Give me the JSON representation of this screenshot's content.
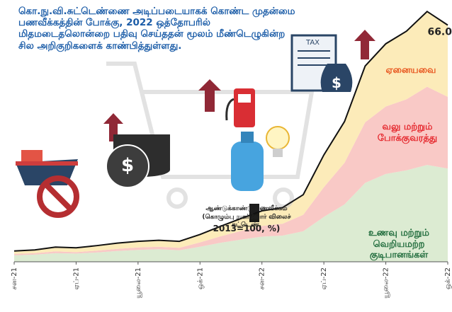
{
  "chart_data": {
    "type": "stacked_area",
    "summary": "கொ.நு.வி.சுட்டெண்ணை அடிப்படையாகக் கொண்ட முதன்மை பணவீக்கத்தின் போக்கு, 2022 ஒத்தோபரில் மிதமடைதலொன்றை பதிவு செய்ததன் மூலம் மீண்டெழுகின்ற சில அறிகுறிகளைக் காண்பித்துள்ளது.",
    "caption_title": "ஆண்டுக்காண்டு பணவீக்கம்",
    "caption_subtitle": "(கொழும்பு நுகர்வோர் விலைச் சுட்டெண்,",
    "caption_base": "2013=100, %)",
    "categories": [
      "சன-21",
      null,
      null,
      "ஏப்-21",
      null,
      null,
      "யூலை-21",
      null,
      null,
      "ஒக்-21",
      null,
      null,
      "சன-22",
      null,
      null,
      "ஏப்-22",
      null,
      null,
      "யூலை-22",
      null,
      null,
      "ஒக்-22"
    ],
    "series": [
      {
        "name": "உணவு மற்றும் வெறியமற்ற குடிபானங்கள்",
        "color": "#dcebd2",
        "label_color": "#1d6a3a",
        "values": [
          1.8,
          2.0,
          2.4,
          2.3,
          2.6,
          3.0,
          3.3,
          3.5,
          3.2,
          4.2,
          5.3,
          6.2,
          7.0,
          7.3,
          8.5,
          12.5,
          16.0,
          22.0,
          24.5,
          25.5,
          27.0,
          26.0
        ]
      },
      {
        "name": "வலு மற்றும் போக்குவரத்து",
        "color": "#f9c9c6",
        "label_color": "#e5262c",
        "values": [
          0.4,
          0.4,
          0.5,
          0.4,
          0.5,
          0.6,
          0.7,
          0.7,
          0.7,
          1.2,
          1.8,
          2.4,
          3.0,
          3.3,
          4.6,
          8.3,
          11.6,
          16.9,
          18.8,
          19.8,
          21.8,
          20.0
        ]
      },
      {
        "name": "ஏனையவை",
        "color": "#fcebb9",
        "label_color": "#e8561f",
        "values": [
          0.8,
          0.9,
          1.2,
          1.2,
          1.4,
          1.6,
          1.7,
          1.8,
          1.8,
          2.2,
          2.8,
          3.5,
          4.2,
          4.5,
          5.6,
          9.0,
          11.5,
          15.7,
          17.5,
          19.0,
          21.0,
          20.0
        ]
      }
    ],
    "total": {
      "color": "#111111",
      "values": [
        3.0,
        3.3,
        4.1,
        3.9,
        4.5,
        5.2,
        5.7,
        6.0,
        5.7,
        7.6,
        9.9,
        12.1,
        14.2,
        15.1,
        18.7,
        29.8,
        39.1,
        54.6,
        60.8,
        64.3,
        69.8,
        66.0
      ],
      "value_labels": [
        null,
        null,
        null,
        null,
        null,
        null,
        null,
        null,
        null,
        null,
        null,
        null,
        null,
        null,
        null,
        null,
        null,
        null,
        null,
        null,
        null,
        "66.0"
      ]
    },
    "ylim": [
      0,
      73
    ]
  }
}
